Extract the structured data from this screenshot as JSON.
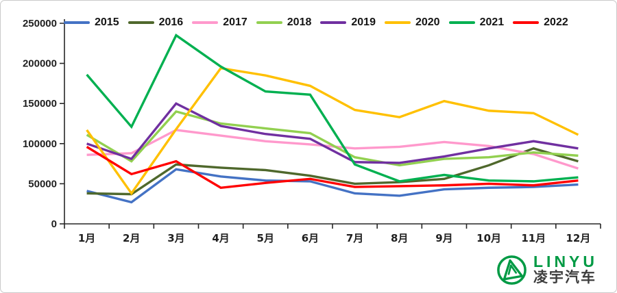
{
  "chart_data": {
    "type": "line",
    "title": "",
    "xlabel": "",
    "ylabel": "",
    "grid": false,
    "legend_position": "top",
    "ylim": [
      0,
      250000
    ],
    "yticks": [
      0,
      50000,
      100000,
      150000,
      200000,
      250000
    ],
    "categories": [
      "1月",
      "2月",
      "3月",
      "4月",
      "5月",
      "6月",
      "7月",
      "8月",
      "9月",
      "10月",
      "11月",
      "12月"
    ],
    "series": [
      {
        "name": "2015",
        "color": "#4472C4",
        "values": [
          41000,
          27000,
          68000,
          59000,
          54000,
          53000,
          38000,
          35000,
          43000,
          45000,
          46000,
          49000
        ]
      },
      {
        "name": "2016",
        "color": "#4F682C",
        "values": [
          38000,
          37000,
          74000,
          70000,
          67000,
          60000,
          50000,
          52000,
          56000,
          73000,
          94000,
          78000
        ]
      },
      {
        "name": "2017",
        "color": "#FF99CC",
        "values": [
          86000,
          88000,
          117000,
          110000,
          103000,
          99000,
          94000,
          96000,
          102000,
          97000,
          87000,
          69000
        ]
      },
      {
        "name": "2018",
        "color": "#92D050",
        "values": [
          111000,
          78000,
          140000,
          125000,
          119000,
          113000,
          83000,
          73000,
          81000,
          83000,
          89000,
          85000
        ]
      },
      {
        "name": "2019",
        "color": "#7030A0",
        "values": [
          100000,
          81000,
          150000,
          122000,
          112000,
          106000,
          77000,
          76000,
          84000,
          94000,
          103000,
          94000
        ]
      },
      {
        "name": "2020",
        "color": "#FFC000",
        "values": [
          117000,
          38000,
          118000,
          194000,
          185000,
          172000,
          142000,
          133000,
          153000,
          141000,
          138000,
          111000
        ]
      },
      {
        "name": "2021",
        "color": "#00B050",
        "values": [
          186000,
          121000,
          235000,
          196000,
          165000,
          161000,
          74000,
          53000,
          61000,
          54000,
          53000,
          58000
        ]
      },
      {
        "name": "2022",
        "color": "#FF0000",
        "values": [
          96000,
          62000,
          78000,
          45000,
          51000,
          56000,
          46000,
          47000,
          48000,
          50000,
          48000,
          54000
        ]
      }
    ]
  },
  "logo": {
    "brand_en": "LINYU",
    "brand_cn": "凌宇汽车"
  }
}
